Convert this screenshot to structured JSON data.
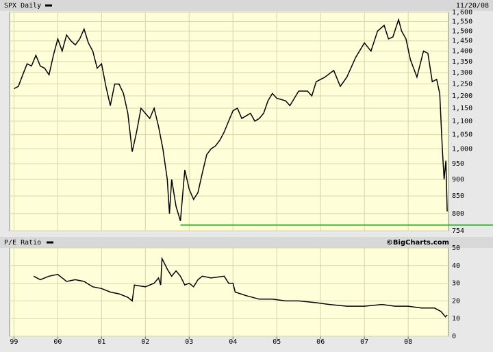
{
  "chart_data": [
    {
      "type": "line",
      "title": "SPX Daily",
      "date": "11/20/08",
      "log_y": true,
      "grid": true,
      "reference_line": 769,
      "xlim": [
        1998.9,
        2008.92
      ],
      "xticks": [
        {
          "value": 1999,
          "label": "99"
        },
        {
          "value": 2000,
          "label": "00"
        },
        {
          "value": 2001,
          "label": "01"
        },
        {
          "value": 2002,
          "label": "02"
        },
        {
          "value": 2003,
          "label": "03"
        },
        {
          "value": 2004,
          "label": "04"
        },
        {
          "value": 2005,
          "label": "05"
        },
        {
          "value": 2006,
          "label": "06"
        },
        {
          "value": 2007,
          "label": "07"
        },
        {
          "value": 2008,
          "label": "08"
        }
      ],
      "ylim": [
        754,
        1600
      ],
      "yticks": [
        754,
        800,
        850,
        900,
        950,
        {
          "value": 1000,
          "label": "1,000"
        },
        {
          "value": 1050,
          "label": "1,050"
        },
        {
          "value": 1100,
          "label": "1,100"
        },
        {
          "value": 1150,
          "label": "1,150"
        },
        {
          "value": 1200,
          "label": "1,200"
        },
        {
          "value": 1250,
          "label": "1,250"
        },
        {
          "value": 1300,
          "label": "1,300"
        },
        {
          "value": 1350,
          "label": "1,350"
        },
        {
          "value": 1400,
          "label": "1,400"
        },
        {
          "value": 1450,
          "label": "1,450"
        },
        {
          "value": 1500,
          "label": "1,500"
        },
        {
          "value": 1550,
          "label": "1,550"
        },
        {
          "value": 1600,
          "label": "1,600"
        }
      ],
      "series": [
        {
          "color": "#000000",
          "x": [
            1999.0,
            1999.1,
            1999.2,
            1999.3,
            1999.4,
            1999.5,
            1999.6,
            1999.7,
            1999.8,
            1999.9,
            2000.0,
            2000.1,
            2000.2,
            2000.3,
            2000.4,
            2000.5,
            2000.6,
            2000.7,
            2000.8,
            2000.9,
            2001.0,
            2001.1,
            2001.2,
            2001.3,
            2001.4,
            2001.5,
            2001.6,
            2001.7,
            2001.8,
            2001.9,
            2002.0,
            2002.1,
            2002.2,
            2002.3,
            2002.4,
            2002.5,
            2002.55,
            2002.6,
            2002.7,
            2002.8,
            2002.9,
            2003.0,
            2003.1,
            2003.2,
            2003.3,
            2003.4,
            2003.5,
            2003.6,
            2003.7,
            2003.8,
            2003.9,
            2004.0,
            2004.1,
            2004.2,
            2004.3,
            2004.4,
            2004.5,
            2004.6,
            2004.7,
            2004.8,
            2004.9,
            2005.0,
            2005.2,
            2005.3,
            2005.5,
            2005.7,
            2005.8,
            2005.9,
            2006.1,
            2006.3,
            2006.45,
            2006.6,
            2006.8,
            2007.0,
            2007.15,
            2007.3,
            2007.45,
            2007.55,
            2007.65,
            2007.78,
            2007.85,
            2007.95,
            2008.05,
            2008.2,
            2008.35,
            2008.45,
            2008.55,
            2008.65,
            2008.72,
            2008.78,
            2008.82,
            2008.86,
            2008.89
          ],
          "values": [
            1230,
            1240,
            1290,
            1340,
            1330,
            1380,
            1330,
            1320,
            1290,
            1380,
            1460,
            1400,
            1480,
            1450,
            1430,
            1460,
            1510,
            1440,
            1400,
            1320,
            1340,
            1240,
            1160,
            1250,
            1250,
            1210,
            1130,
            990,
            1060,
            1150,
            1130,
            1110,
            1150,
            1080,
            1000,
            900,
            800,
            900,
            820,
            780,
            930,
            870,
            840,
            860,
            920,
            980,
            1000,
            1010,
            1030,
            1060,
            1100,
            1140,
            1150,
            1110,
            1120,
            1130,
            1100,
            1110,
            1130,
            1180,
            1210,
            1190,
            1180,
            1160,
            1220,
            1220,
            1200,
            1260,
            1280,
            1310,
            1240,
            1280,
            1370,
            1440,
            1400,
            1500,
            1530,
            1460,
            1470,
            1560,
            1500,
            1460,
            1360,
            1280,
            1400,
            1390,
            1260,
            1270,
            1210,
            1000,
            900,
            960,
            806
          ]
        }
      ]
    },
    {
      "type": "line",
      "title": "P/E Ratio",
      "credit": "©BigCharts.com",
      "grid": true,
      "xlim": [
        1998.9,
        2008.92
      ],
      "ylim": [
        0,
        50
      ],
      "yticks": [
        0,
        10,
        20,
        30,
        40,
        50
      ],
      "series": [
        {
          "color": "#000000",
          "x": [
            1999.45,
            1999.6,
            1999.8,
            2000.0,
            2000.2,
            2000.4,
            2000.6,
            2000.8,
            2001.0,
            2001.2,
            2001.4,
            2001.6,
            2001.7,
            2001.75,
            2002.0,
            2002.2,
            2002.3,
            2002.35,
            2002.38,
            2002.5,
            2002.6,
            2002.7,
            2002.8,
            2002.9,
            2003.0,
            2003.1,
            2003.2,
            2003.3,
            2003.5,
            2003.8,
            2003.9,
            2004.0,
            2004.05,
            2004.3,
            2004.6,
            2004.9,
            2005.2,
            2005.5,
            2005.9,
            2006.2,
            2006.6,
            2007.0,
            2007.4,
            2007.7,
            2008.0,
            2008.3,
            2008.6,
            2008.75,
            2008.85,
            2008.89
          ],
          "values": [
            34,
            32,
            34,
            35,
            31,
            32,
            31,
            28,
            27,
            25,
            24,
            22,
            20,
            29,
            28,
            30,
            33,
            29,
            44,
            38,
            34,
            37,
            34,
            29,
            30,
            28,
            32,
            34,
            33,
            34,
            30,
            30,
            25,
            23,
            21,
            21,
            20,
            20,
            19,
            18,
            17,
            17,
            18,
            17,
            17,
            16,
            16,
            14,
            11,
            12
          ]
        }
      ]
    }
  ]
}
